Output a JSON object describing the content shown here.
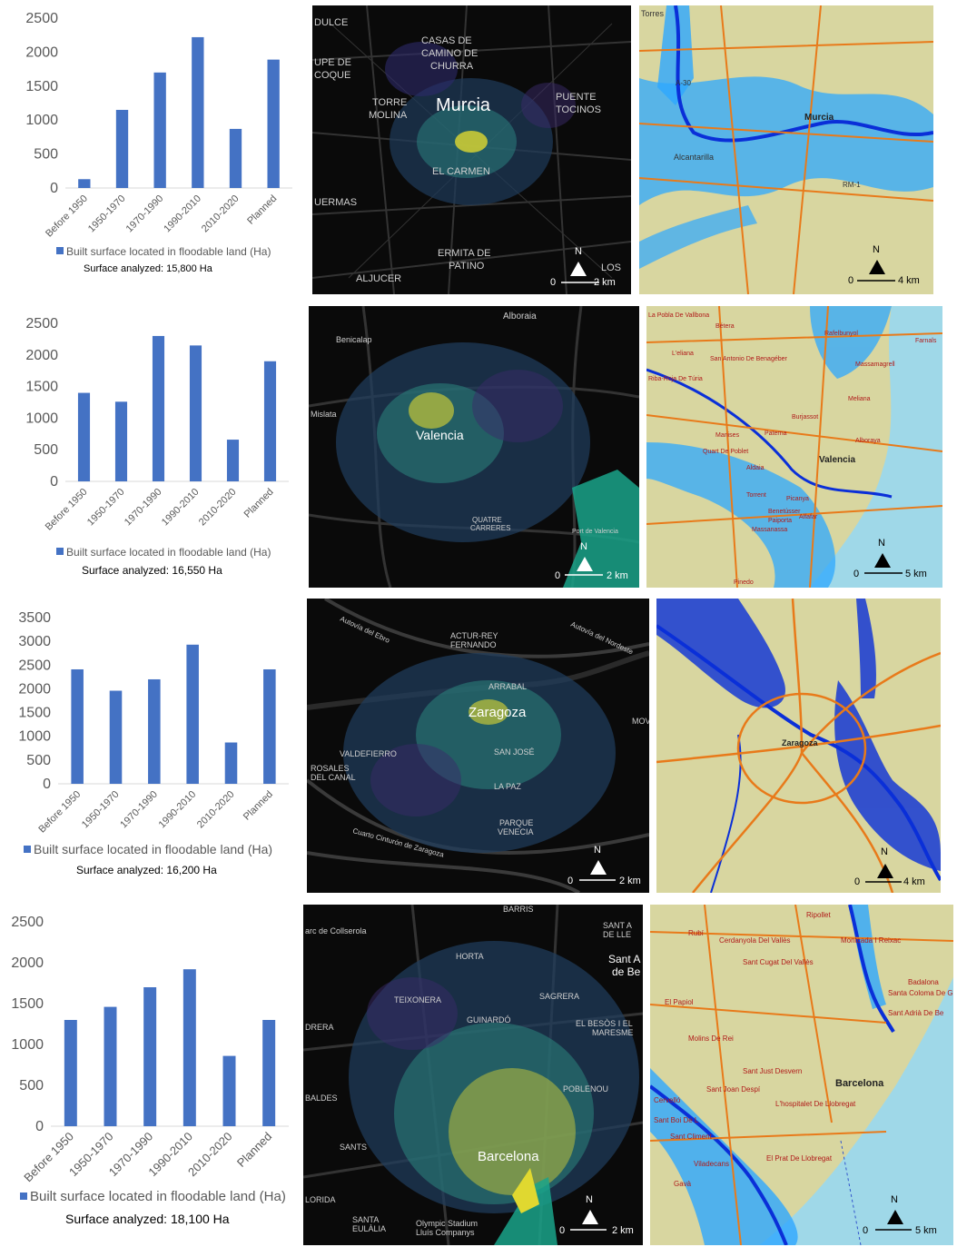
{
  "colors": {
    "bar": "#4472c4",
    "dark_map_bg": "#0a0a0a",
    "dark_road": "#3a3a3a",
    "flood_dark": "#0a2fd8",
    "flood_light": "#2ea8ff",
    "relief": "#d8d6a0",
    "road_orange": "#e87a1a",
    "sea": "#9fd8e8"
  },
  "chart_data": [
    {
      "type": "bar",
      "categories": [
        "Before 1950",
        "1950-1970",
        "1970-1990",
        "1990-2010",
        "2010-2020",
        "Planned"
      ],
      "values": [
        130,
        1150,
        1700,
        2220,
        870,
        1890
      ],
      "ylim": [
        0,
        2500
      ],
      "yticks": [
        "0",
        "500",
        "1000",
        "1500",
        "2000",
        "2500"
      ],
      "legend": "Built surface located in floodable land (Ha)",
      "note": "Surface analyzed: 15,800 Ha",
      "grid": false
    },
    {
      "type": "bar",
      "categories": [
        "Before 1950",
        "1950-1970",
        "1970-1990",
        "1990-2010",
        "2010-2020",
        "Planned"
      ],
      "values": [
        1400,
        1260,
        2300,
        2150,
        660,
        1900
      ],
      "ylim": [
        0,
        2500
      ],
      "yticks": [
        "0",
        "500",
        "1000",
        "1500",
        "2000",
        "2500"
      ],
      "legend": "Built surface located in floodable land (Ha)",
      "note": "Surface analyzed: 16,550 Ha",
      "grid": false
    },
    {
      "type": "bar",
      "categories": [
        "Before 1950",
        "1950-1970",
        "1970-1990",
        "1990-2010",
        "2010-2020",
        "Planned"
      ],
      "values": [
        2410,
        1960,
        2200,
        2930,
        870,
        2410
      ],
      "ylim": [
        0,
        3500
      ],
      "yticks": [
        "0",
        "500",
        "1000",
        "1500",
        "2000",
        "2500",
        "3000",
        "3500"
      ],
      "legend": "Built surface located in floodable land (Ha)",
      "note": "Surface analyzed: 16,200 Ha",
      "grid": false
    },
    {
      "type": "bar",
      "categories": [
        "Before 1950",
        "1950-1970",
        "1970-1990",
        "1990-2010",
        "2010-2020",
        "Planned"
      ],
      "values": [
        1300,
        1460,
        1700,
        1920,
        860,
        1300
      ],
      "ylim": [
        0,
        2500
      ],
      "yticks": [
        "0",
        "500",
        "1000",
        "1500",
        "2000",
        "2500"
      ],
      "legend": "Built surface located in floodable land (Ha)",
      "note": "Surface analyzed: 18,100 Ha",
      "grid": false
    }
  ],
  "maps": {
    "murcia_dark": {
      "labels": [
        "DULCE",
        "CASAS DE",
        "CAMINO DE",
        "CHURRA",
        "UPE DE",
        "COQUE",
        "TORRE",
        "MOLINA",
        "Murcia",
        "PUENTE",
        "TOCINOS",
        "EL CARMEN",
        "UERMAS",
        "ERMITA DE",
        "PATINO",
        "LOS",
        "ALJUCER"
      ],
      "scale": [
        "0",
        "2 km"
      ],
      "north": "N"
    },
    "murcia_flood": {
      "labels": [
        "Torres",
        "Murcia",
        "Alcantarilla",
        "A-30",
        "RM-1"
      ],
      "scale": [
        "0",
        "4 km"
      ],
      "north": "N"
    },
    "valencia_dark": {
      "labels": [
        "Alboraia",
        "Benicalap",
        "Valencia",
        "Mislata",
        "QUATRE",
        "CARRERES",
        "Port de Valencia"
      ],
      "scale": [
        "0",
        "2 km"
      ],
      "north": "N"
    },
    "valencia_flood": {
      "labels": [
        "La Pobla De Vallbona",
        "Bétera",
        "Rafelbunyol",
        "Farnals",
        "L'eliana",
        "San Antonio De Benagéber",
        "Massamagrell",
        "Riba-Roja De Túria",
        "Paterna",
        "Burjassot",
        "Meliana",
        "Manises",
        "Quart De Poblet",
        "Alboraya",
        "Valencia",
        "Aldaia",
        "Torrent",
        "Picanya",
        "Benetússer",
        "Paiporta",
        "Massanassa",
        "Alfafar",
        "Pinedo"
      ],
      "scale": [
        "0",
        "5 km"
      ],
      "north": "N"
    },
    "zaragoza_dark": {
      "labels": [
        "Autovía del Ebro",
        "Autovía del Nordeste",
        "ACTUR-REY",
        "FERNANDO",
        "ARRABAL",
        "Zaragoza",
        "VALDEFIERRO",
        "ROSALES",
        "DEL CANAL",
        "SAN JOSÉ",
        "LA PAZ",
        "PARQUE",
        "VENECIA",
        "Cuarto Cinturón de Zaragoza",
        "MOV"
      ],
      "scale": [
        "0",
        "2 km"
      ],
      "north": "N"
    },
    "zaragoza_flood": {
      "labels": [
        "Zaragoza"
      ],
      "scale": [
        "0",
        "4 km"
      ],
      "north": "N"
    },
    "barcelona_dark": {
      "labels": [
        "BARRIS",
        "arc de Collserola",
        "SANT A",
        "DE LLE",
        "Sant A",
        "de Be",
        "HORTA",
        "TEIXONERA",
        "GUINARDÓ",
        "SAGRERA",
        "EL BESÒS I EL",
        "MARESME",
        "DRERA",
        "BALDES",
        "POBLENOU",
        "Barcelona",
        "SANTS",
        "LORIDA",
        "SANTA",
        "EULÀLIA",
        "Olympic Stadium",
        "Lluís Companys"
      ],
      "scale": [
        "0",
        "2 km"
      ],
      "north": "N"
    },
    "barcelona_flood": {
      "labels": [
        "Ripollet",
        "Rubí",
        "Cerdanyola Del Vallès",
        "Montcada I Reixac",
        "Sant Cugat Del Vallès",
        "Badalona",
        "Santa Coloma De G",
        "Sant Adrià De Be",
        "El Papiol",
        "Molins De Rei",
        "Sant Just Desvern",
        "Barcelona",
        "Sant Joan Despí",
        "L'hospitalet De Llobregat",
        "Sant Boi De L",
        "Sant Climent",
        "El Prat De Llobregat",
        "Viladecans",
        "Gavà",
        "Cervelló"
      ],
      "scale": [
        "0",
        "5 km"
      ],
      "north": "N"
    }
  }
}
